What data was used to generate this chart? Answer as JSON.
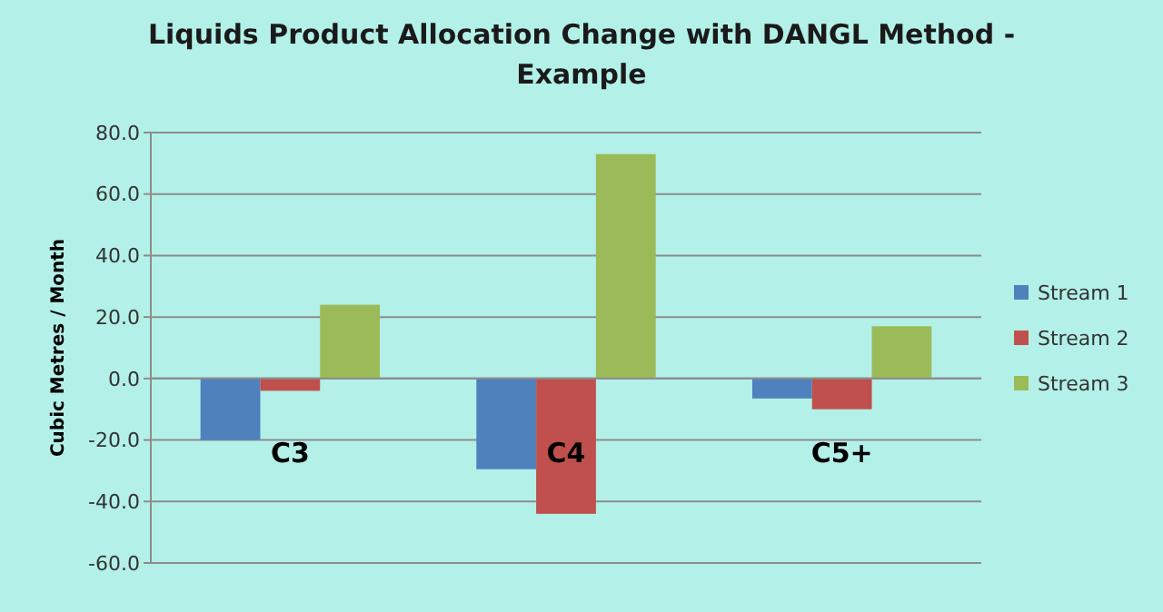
{
  "chart_data": {
    "type": "bar",
    "title": "Liquids Product Allocation Change with DANGL Method - Example",
    "ylabel": "Cubic Metres / Month",
    "categories": [
      "C3",
      "C4",
      "C5+"
    ],
    "series": [
      {
        "name": "Stream 1",
        "color": "#4f81bd",
        "values": [
          -20,
          -29.5,
          -6.5
        ]
      },
      {
        "name": "Stream 2",
        "color": "#c0504d",
        "values": [
          -4,
          -44,
          -10
        ]
      },
      {
        "name": "Stream 3",
        "color": "#9bbb59",
        "values": [
          24,
          73,
          17
        ]
      }
    ],
    "ylim": [
      -60,
      80
    ],
    "yticks": [
      {
        "value": -60,
        "label": "-60.0"
      },
      {
        "value": -40,
        "label": "-40.0"
      },
      {
        "value": -20,
        "label": "-20.0"
      },
      {
        "value": 0,
        "label": "0.0"
      },
      {
        "value": 20,
        "label": "20.0"
      },
      {
        "value": 40,
        "label": "40.0"
      },
      {
        "value": 60,
        "label": "60.0"
      },
      {
        "value": 80,
        "label": "80.0"
      }
    ],
    "grid": "y",
    "legend": "right"
  }
}
